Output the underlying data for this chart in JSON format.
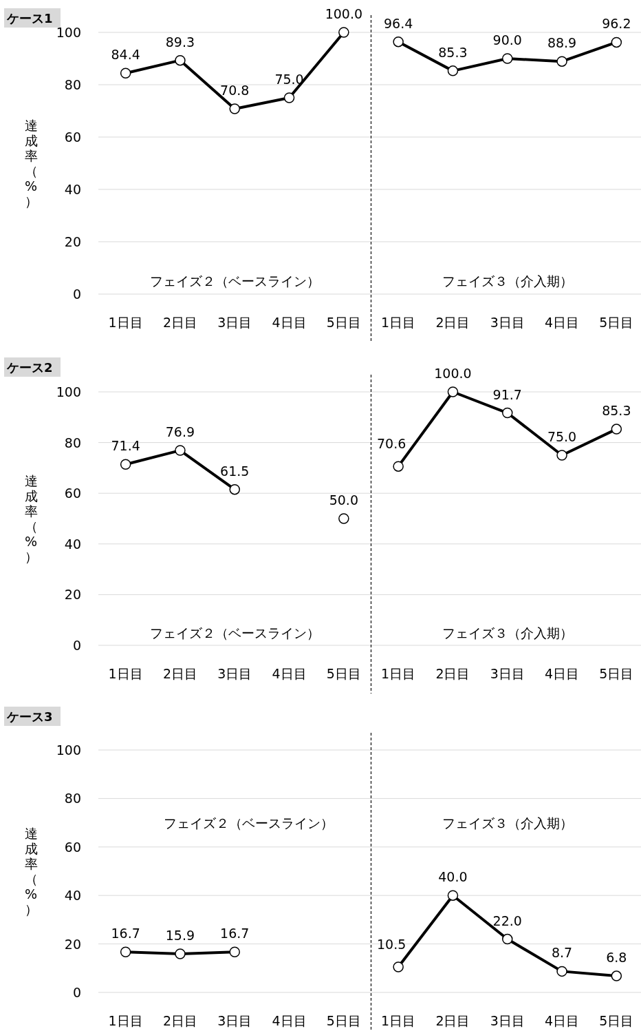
{
  "chart_data": [
    {
      "type": "line",
      "title": "ケース1",
      "ylabel": "達成率（%）",
      "categories": [
        "1日目",
        "2日目",
        "3日目",
        "4日目",
        "5日目",
        "1日目",
        "2日目",
        "3日目",
        "4日目",
        "5日目"
      ],
      "series": [
        {
          "color": "#000000",
          "values": [
            84.4,
            89.3,
            70.8,
            75.0,
            100.0,
            null,
            null,
            null,
            null,
            null
          ],
          "value_labels": [
            "84.4",
            "89.3",
            "70.8",
            "75.0",
            "100.0",
            null,
            null,
            null,
            null,
            null
          ]
        },
        {
          "color": "#000000",
          "values": [
            null,
            null,
            null,
            null,
            null,
            96.4,
            85.3,
            90.0,
            88.9,
            96.2
          ],
          "value_labels": [
            null,
            null,
            null,
            null,
            null,
            "96.4",
            "85.3",
            "90.0",
            "88.9",
            "96.2"
          ]
        }
      ],
      "ylim": [
        0,
        100
      ],
      "yticks": [
        0,
        20,
        40,
        60,
        80,
        100
      ],
      "grid": "y",
      "marker": "circle",
      "line_style": "solid",
      "annotations": [
        "フェイズ２（ベースライン）",
        "フェイズ３（介入期）"
      ]
    },
    {
      "type": "line",
      "title": "ケース2",
      "ylabel": "達成率（%）",
      "categories": [
        "1日目",
        "2日目",
        "3日目",
        "4日目",
        "5日目",
        "1日目",
        "2日目",
        "3日目",
        "4日目",
        "5日目"
      ],
      "series": [
        {
          "color": "#000000",
          "values": [
            71.4,
            76.9,
            61.5,
            null,
            50.0,
            null,
            null,
            null,
            null,
            null
          ],
          "value_labels": [
            "71.4",
            "76.9",
            "61.5",
            null,
            "50.0",
            null,
            null,
            null,
            null,
            null
          ]
        },
        {
          "color": "#000000",
          "values": [
            null,
            null,
            null,
            null,
            null,
            70.6,
            100.0,
            91.7,
            75.0,
            85.3
          ],
          "value_labels": [
            null,
            null,
            null,
            null,
            null,
            "70.6",
            "100.0",
            "91.7",
            "75.0",
            "85.3"
          ]
        }
      ],
      "ylim": [
        0,
        100
      ],
      "yticks": [
        0,
        20,
        40,
        60,
        80,
        100
      ],
      "grid": "y",
      "marker": "circle",
      "line_style": "solid",
      "annotations": [
        "フェイズ２（ベースライン）",
        "フェイズ３（介入期）"
      ]
    },
    {
      "type": "line",
      "title": "ケース3",
      "ylabel": "達成率（%）",
      "categories": [
        "1日目",
        "2日目",
        "3日目",
        "4日目",
        "5日目",
        "1日目",
        "2日目",
        "3日目",
        "4日目",
        "5日目"
      ],
      "series": [
        {
          "color": "#000000",
          "values": [
            16.7,
            15.9,
            16.7,
            null,
            null,
            null,
            null,
            null,
            null,
            null
          ],
          "value_labels": [
            "16.7",
            "15.9",
            "16.7",
            null,
            null,
            null,
            null,
            null,
            null,
            null
          ]
        },
        {
          "color": "#000000",
          "values": [
            null,
            null,
            null,
            null,
            null,
            10.5,
            40.0,
            22.0,
            8.7,
            6.8
          ],
          "value_labels": [
            null,
            null,
            null,
            null,
            null,
            "10.5",
            "40.0",
            "22.0",
            "8.7",
            "6.8"
          ]
        }
      ],
      "ylim": [
        0,
        100
      ],
      "yticks": [
        0,
        20,
        40,
        60,
        80,
        100
      ],
      "grid": "y",
      "marker": "circle",
      "line_style": "solid",
      "annotations": [
        "フェイズ２（ベースライン）",
        "フェイズ３（介入期）"
      ]
    }
  ]
}
